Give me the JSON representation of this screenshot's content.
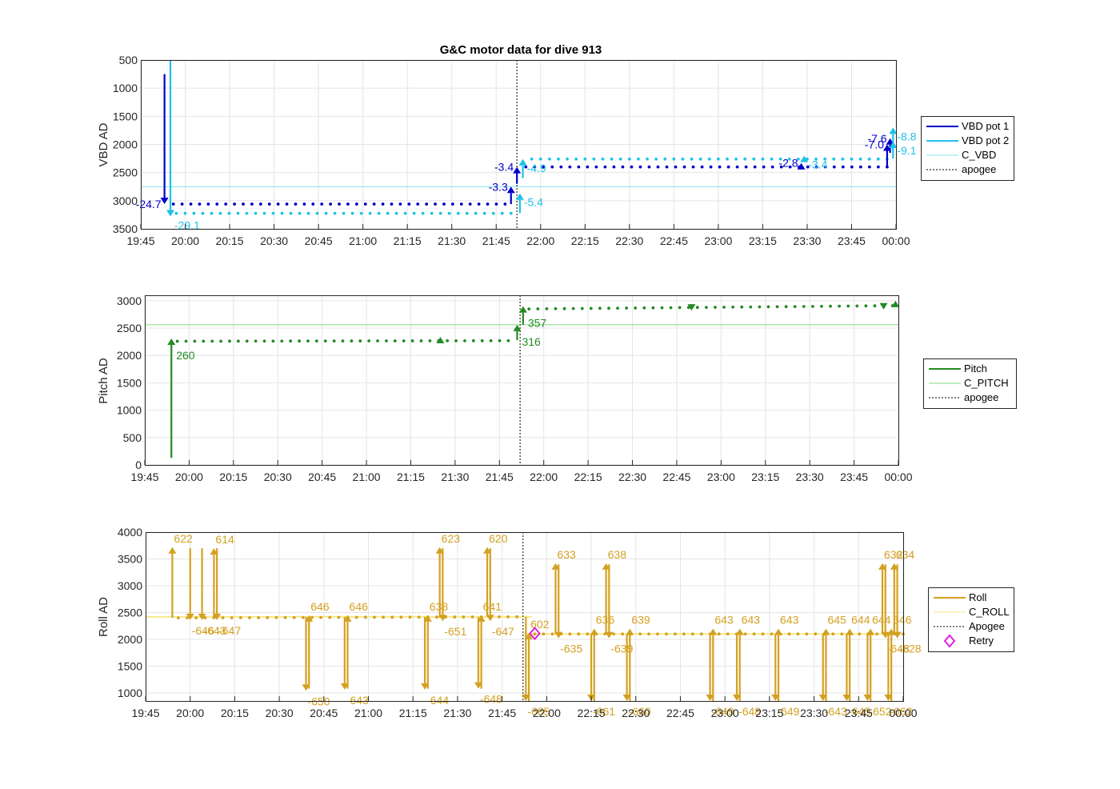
{
  "title": "G&C motor data for dive 913",
  "colors": {
    "vbd1": "#0000cd",
    "vbd2": "#1ec2e6",
    "c_vbd": "#7fe6f2",
    "pitch": "#228b22",
    "c_pitch": "#7fd97f",
    "roll": "#d4a020",
    "c_roll": "#f5e98a",
    "apogee": "#555555",
    "retry": "#e020e0"
  },
  "x_tick_labels": [
    "19:45",
    "20:00",
    "20:15",
    "20:30",
    "20:45",
    "21:00",
    "21:15",
    "21:30",
    "21:45",
    "22:00",
    "22:15",
    "22:30",
    "22:45",
    "23:00",
    "23:15",
    "23:30",
    "23:45",
    "00:00"
  ],
  "chart_data": [
    {
      "type": "line",
      "panel": "vbd",
      "title": "G&C motor data for dive 913",
      "ylabel": "VBD AD",
      "ylim": [
        500,
        3500
      ],
      "y_reversed": true,
      "y_ticks": [
        "500",
        "1000",
        "1500",
        "2000",
        "2500",
        "3000",
        "3500"
      ],
      "xlim": [
        "19:45",
        "00:00"
      ],
      "apogee": "21:52",
      "reference_line": {
        "name": "C_VBD",
        "y": 2750
      },
      "legend": [
        "VBD pot 1",
        "VBD pot 2",
        "C_VBD",
        "apogee"
      ],
      "legend_position": "outside-right",
      "moves": [
        {
          "series": "VBD pot 1",
          "t": "19:53",
          "from": 750,
          "to": 3060,
          "label": "-24.7"
        },
        {
          "series": "VBD pot 2",
          "t": "19:55",
          "from": 500,
          "to": 3280,
          "label": "-29.1"
        },
        {
          "series": "VBD pot 1",
          "t": "21:50",
          "from": 3060,
          "to": 2750,
          "label": "-3.3"
        },
        {
          "series": "VBD pot 2",
          "t": "21:53",
          "from": 3220,
          "to": 2870,
          "label": "-5.4"
        },
        {
          "series": "VBD pot 1",
          "t": "21:52",
          "from": 2700,
          "to": 2400,
          "label": "-3.4"
        },
        {
          "series": "VBD pot 2",
          "t": "21:54",
          "from": 2600,
          "to": 2260,
          "label": "-4.9"
        },
        {
          "series": "VBD pot 1",
          "t": "23:28",
          "from": 2400,
          "to": 2330,
          "label": "-2.8"
        },
        {
          "series": "VBD pot 2",
          "t": "23:29",
          "from": 2260,
          "to": 2200,
          "label": "-3.4"
        },
        {
          "series": "VBD pot 1",
          "t": "23:57",
          "from": 2400,
          "to": 2000,
          "label": "-7.0"
        },
        {
          "series": "VBD pot 1",
          "t": "23:58",
          "from": 2150,
          "to": 1890,
          "label": "-7.6"
        },
        {
          "series": "VBD pot 2",
          "t": "23:59",
          "from": 2250,
          "to": 1700,
          "label": "-8.8"
        },
        {
          "series": "VBD pot 2",
          "t": "23:59",
          "from": 2100,
          "to": 1950,
          "label": "-9.1"
        }
      ],
      "series": [
        {
          "name": "VBD pot 1",
          "segments": [
            {
              "x0": "19:56",
              "x1": "21:48",
              "y": 3060
            },
            {
              "x0": "21:55",
              "x1": "23:57",
              "y": 2400
            }
          ]
        },
        {
          "name": "VBD pot 2",
          "segments": [
            {
              "x0": "19:57",
              "x1": "21:50",
              "y": 3225
            },
            {
              "x0": "21:57",
              "x1": "23:57",
              "y": 2260
            }
          ]
        }
      ]
    },
    {
      "type": "line",
      "panel": "pitch",
      "ylabel": "Pitch AD",
      "ylim": [
        0,
        3100
      ],
      "y_ticks": [
        "0",
        "500",
        "1000",
        "1500",
        "2000",
        "2500",
        "3000"
      ],
      "xlim": [
        "19:45",
        "00:00"
      ],
      "apogee": "21:52",
      "reference_line": {
        "name": "C_PITCH",
        "y": 2560
      },
      "legend": [
        "Pitch",
        "C_PITCH",
        "apogee"
      ],
      "legend_position": "outside-right",
      "moves": [
        {
          "t": "19:54",
          "from": 130,
          "to": 2310,
          "label": "260"
        },
        {
          "t": "21:51",
          "from": 2280,
          "to": 2560,
          "label": "316"
        },
        {
          "t": "21:53",
          "from": 2560,
          "to": 2900,
          "label": "357"
        },
        {
          "t": "21:25",
          "from": 2290,
          "to": 2340,
          "label": ""
        },
        {
          "t": "22:50",
          "from": 2890,
          "to": 2820,
          "label": ""
        },
        {
          "t": "23:55",
          "from": 2910,
          "to": 2840,
          "label": ""
        },
        {
          "t": "23:59",
          "from": 2920,
          "to": 3000,
          "label": ""
        }
      ],
      "series": [
        {
          "name": "Pitch",
          "segments": [
            {
              "x0": "19:56",
              "x1": "21:48",
              "y0": 2260,
              "y1": 2270
            },
            {
              "x0": "21:55",
              "x1": "23:58",
              "y0": 2850,
              "y1": 2910
            }
          ]
        }
      ]
    },
    {
      "type": "line",
      "panel": "roll",
      "ylabel": "Roll AD",
      "ylim": [
        850,
        4000
      ],
      "y_ticks": [
        "1000",
        "1500",
        "2000",
        "2500",
        "3000",
        "3500",
        "4000"
      ],
      "xlim": [
        "19:45",
        "00:00"
      ],
      "apogee": "21:52",
      "reference_line": {
        "name": "C_ROLL",
        "y": 2420
      },
      "reference_line_2": {
        "name": "C_ROLL",
        "y": 2100
      },
      "legend": [
        "Roll",
        "C_ROLL",
        "Apogee",
        "Retry"
      ],
      "legend_position": "outside-right",
      "retry": {
        "t": "21:56",
        "y": 2110
      },
      "moves": [
        {
          "t": "19:54",
          "from": 2400,
          "to": 3720,
          "label": "622"
        },
        {
          "t": "20:00",
          "from": 3700,
          "to": 2360,
          "label": "-646"
        },
        {
          "t": "20:04",
          "from": 3700,
          "to": 2360,
          "label": "-643"
        },
        {
          "t": "20:08",
          "from": 2400,
          "to": 3700,
          "label": "614"
        },
        {
          "t": "20:09",
          "from": 3700,
          "to": 2360,
          "label": "-647"
        },
        {
          "t": "20:39",
          "from": 2420,
          "to": 1040,
          "label": "-650"
        },
        {
          "t": "20:40",
          "from": 1080,
          "to": 2450,
          "label": "646"
        },
        {
          "t": "20:52",
          "from": 2420,
          "to": 1060,
          "label": "-643"
        },
        {
          "t": "20:53",
          "from": 1080,
          "to": 2450,
          "label": "646"
        },
        {
          "t": "21:19",
          "from": 2420,
          "to": 1060,
          "label": "-644"
        },
        {
          "t": "21:20",
          "from": 1080,
          "to": 2450,
          "label": "638"
        },
        {
          "t": "21:24",
          "from": 2400,
          "to": 3720,
          "label": "623"
        },
        {
          "t": "21:25",
          "from": 3700,
          "to": 2340,
          "label": "-651"
        },
        {
          "t": "21:37",
          "from": 2420,
          "to": 1080,
          "label": "-648"
        },
        {
          "t": "21:38",
          "from": 1080,
          "to": 2450,
          "label": "641"
        },
        {
          "t": "21:40",
          "from": 2420,
          "to": 3720,
          "label": "620"
        },
        {
          "t": "21:41",
          "from": 3700,
          "to": 2340,
          "label": "-647"
        },
        {
          "t": "21:53",
          "from": 2420,
          "to": 850,
          "label": "-685"
        },
        {
          "t": "21:54",
          "from": 850,
          "to": 2120,
          "label": "602"
        },
        {
          "t": "22:03",
          "from": 2100,
          "to": 3420,
          "label": "633"
        },
        {
          "t": "22:04",
          "from": 3400,
          "to": 2020,
          "label": "-635"
        },
        {
          "t": "22:15",
          "from": 2100,
          "to": 850,
          "label": "-661"
        },
        {
          "t": "22:16",
          "from": 850,
          "to": 2200,
          "label": "636"
        },
        {
          "t": "22:20",
          "from": 2100,
          "to": 3420,
          "label": "638"
        },
        {
          "t": "22:21",
          "from": 3400,
          "to": 2020,
          "label": "-639"
        },
        {
          "t": "22:27",
          "from": 2100,
          "to": 850,
          "label": "-660"
        },
        {
          "t": "22:28",
          "from": 850,
          "to": 2200,
          "label": "639"
        },
        {
          "t": "22:55",
          "from": 2100,
          "to": 850,
          "label": "-649"
        },
        {
          "t": "22:56",
          "from": 850,
          "to": 2200,
          "label": "643"
        },
        {
          "t": "23:04",
          "from": 2100,
          "to": 850,
          "label": "-648"
        },
        {
          "t": "23:05",
          "from": 850,
          "to": 2200,
          "label": "643"
        },
        {
          "t": "23:17",
          "from": 2100,
          "to": 850,
          "label": "-649"
        },
        {
          "t": "23:18",
          "from": 850,
          "to": 2200,
          "label": "643"
        },
        {
          "t": "23:33",
          "from": 2100,
          "to": 850,
          "label": "-643"
        },
        {
          "t": "23:34",
          "from": 850,
          "to": 2200,
          "label": "645"
        },
        {
          "t": "23:41",
          "from": 2100,
          "to": 850,
          "label": "-645"
        },
        {
          "t": "23:42",
          "from": 850,
          "to": 2200,
          "label": "644"
        },
        {
          "t": "23:48",
          "from": 2100,
          "to": 850,
          "label": "-652"
        },
        {
          "t": "23:49",
          "from": 850,
          "to": 2200,
          "label": "644"
        },
        {
          "t": "23:53",
          "from": 2100,
          "to": 3420,
          "label": "632"
        },
        {
          "t": "23:54",
          "from": 3400,
          "to": 2020,
          "label": "-648"
        },
        {
          "t": "23:55",
          "from": 2100,
          "to": 850,
          "label": "-662"
        },
        {
          "t": "23:56",
          "from": 850,
          "to": 2200,
          "label": "646"
        },
        {
          "t": "23:57",
          "from": 2100,
          "to": 3420,
          "label": "634"
        },
        {
          "t": "23:58",
          "from": 3400,
          "to": 2020,
          "label": "-628"
        }
      ],
      "series": [
        {
          "name": "Roll",
          "segments": [
            {
              "x0": "19:56",
              "x1": "21:50",
              "y0": 2400,
              "y1": 2420
            },
            {
              "x0": "21:56",
              "x1": "00:00",
              "y0": 2100,
              "y1": 2100
            }
          ]
        }
      ]
    }
  ]
}
